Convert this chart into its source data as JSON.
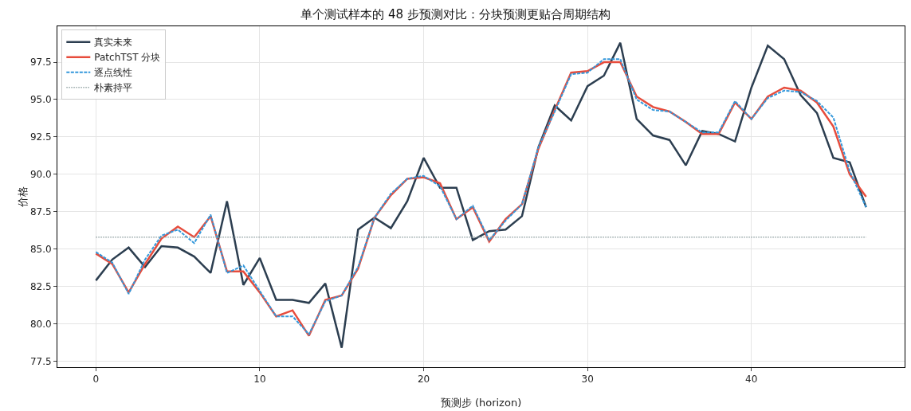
{
  "chart_data": {
    "type": "line",
    "title": "单个测试样本的 48 步预测对比：分块预测更贴合周期结构",
    "xlabel": "预测步 (horizon)",
    "ylabel": "价格",
    "x": [
      0,
      1,
      2,
      3,
      4,
      5,
      6,
      7,
      8,
      9,
      10,
      11,
      12,
      13,
      14,
      15,
      16,
      17,
      18,
      19,
      20,
      21,
      22,
      23,
      24,
      25,
      26,
      27,
      28,
      29,
      30,
      31,
      32,
      33,
      34,
      35,
      36,
      37,
      38,
      39,
      40,
      41,
      42,
      43,
      44,
      45,
      46,
      47
    ],
    "series": [
      {
        "name": "真实未来",
        "color": "#2c3e50",
        "line_style": "solid",
        "values": [
          82.9,
          84.3,
          85.1,
          83.8,
          85.2,
          85.1,
          84.5,
          83.4,
          88.2,
          82.6,
          84.4,
          81.6,
          81.6,
          81.4,
          82.7,
          78.4,
          86.3,
          87.1,
          86.4,
          88.2,
          91.1,
          89.1,
          89.1,
          85.6,
          86.2,
          86.3,
          87.2,
          91.8,
          94.6,
          93.6,
          95.9,
          96.6,
          98.8,
          93.7,
          92.6,
          92.3,
          90.6,
          92.9,
          92.7,
          92.2,
          95.8,
          98.6,
          97.7,
          95.3,
          94.1,
          91.1,
          90.8,
          87.8
        ]
      },
      {
        "name": "PatchTST 分块",
        "color": "#e74c3c",
        "line_style": "solid",
        "values": [
          84.7,
          84.0,
          82.1,
          84.0,
          85.7,
          86.5,
          85.8,
          87.2,
          83.5,
          83.5,
          82.1,
          80.5,
          80.9,
          79.2,
          81.6,
          81.9,
          83.7,
          87.1,
          88.6,
          89.7,
          89.8,
          89.4,
          87.0,
          87.8,
          85.5,
          87.0,
          88.0,
          91.7,
          94.3,
          96.8,
          96.9,
          97.5,
          97.5,
          95.2,
          94.5,
          94.2,
          93.5,
          92.7,
          92.7,
          94.8,
          93.7,
          95.2,
          95.8,
          95.6,
          94.8,
          93.2,
          90.0,
          88.5
        ]
      },
      {
        "name": "逐点线性",
        "color": "#3498db",
        "line_style": "dashed",
        "values": [
          84.8,
          84.1,
          82.0,
          84.3,
          85.9,
          86.3,
          85.4,
          87.3,
          83.4,
          83.9,
          82.2,
          80.5,
          80.5,
          79.3,
          81.5,
          81.9,
          83.8,
          87.1,
          88.7,
          89.7,
          89.9,
          89.2,
          87.0,
          87.9,
          85.6,
          86.9,
          88.0,
          91.8,
          94.2,
          96.7,
          96.8,
          97.7,
          97.7,
          95.0,
          94.3,
          94.2,
          93.5,
          92.8,
          92.8,
          94.9,
          93.7,
          95.1,
          95.6,
          95.5,
          94.9,
          93.8,
          90.2,
          87.8
        ]
      },
      {
        "name": "朴素持平",
        "color": "#95a5a6",
        "line_style": "dotted",
        "values": [
          85.8,
          85.8,
          85.8,
          85.8,
          85.8,
          85.8,
          85.8,
          85.8,
          85.8,
          85.8,
          85.8,
          85.8,
          85.8,
          85.8,
          85.8,
          85.8,
          85.8,
          85.8,
          85.8,
          85.8,
          85.8,
          85.8,
          85.8,
          85.8,
          85.8,
          85.8,
          85.8,
          85.8,
          85.8,
          85.8,
          85.8,
          85.8,
          85.8,
          85.8,
          85.8,
          85.8,
          85.8,
          85.8,
          85.8,
          85.8,
          85.8,
          85.8,
          85.8,
          85.8,
          85.8,
          85.8,
          85.8,
          85.8
        ]
      }
    ],
    "xlim": [
      -2.35,
      49.35
    ],
    "xticks": [
      0,
      10,
      20,
      30,
      40
    ],
    "ylim": [
      77.1,
      99.9
    ],
    "yticks": [
      77.5,
      {
        "value": 80,
        "label": "80.0"
      },
      82.5,
      {
        "value": 85,
        "label": "85.0"
      },
      87.5,
      {
        "value": 90,
        "label": "90.0"
      },
      92.5,
      {
        "value": 95,
        "label": "95.0"
      },
      97.5
    ],
    "grid": true,
    "legend": "top left",
    "marker": "none"
  }
}
